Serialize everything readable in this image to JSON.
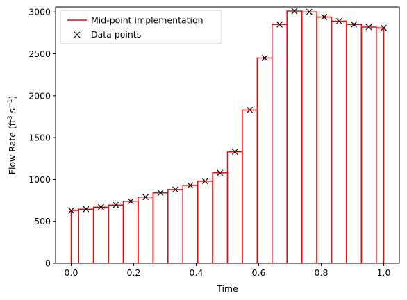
{
  "chart_data": {
    "type": "line",
    "xlabel": "Time",
    "ylabel_main": "Flow Rate (ft",
    "ylabel_exp1": "3",
    "ylabel_mid": " s",
    "ylabel_exp2": "−1",
    "ylabel_close": ")",
    "xlim": [
      -0.05,
      1.05
    ],
    "ylim": [
      0,
      3060
    ],
    "x_ticks": [
      0.0,
      0.2,
      0.4,
      0.6,
      0.8,
      1.0
    ],
    "x_tick_labels": [
      "0.0",
      "0.2",
      "0.4",
      "0.6",
      "0.8",
      "1.0"
    ],
    "y_ticks": [
      0,
      500,
      1000,
      1500,
      2000,
      2500,
      3000
    ],
    "y_tick_labels": [
      "0",
      "500",
      "1000",
      "1500",
      "2000",
      "2500",
      "3000"
    ],
    "legend_position": "top-left",
    "series": [
      {
        "name": "Mid-point implementation",
        "kind": "midpoint-step",
        "color": "#ff0000"
      },
      {
        "name": "Data points",
        "kind": "markers",
        "marker": "x",
        "color": "#000000"
      }
    ],
    "x": [
      0.0,
      0.0476,
      0.0952,
      0.1429,
      0.1905,
      0.2381,
      0.2857,
      0.3333,
      0.381,
      0.4286,
      0.4762,
      0.5238,
      0.5714,
      0.619,
      0.6667,
      0.7143,
      0.7619,
      0.8095,
      0.8571,
      0.9048,
      0.9524,
      1.0
    ],
    "values": [
      630,
      645,
      670,
      695,
      740,
      790,
      840,
      880,
      930,
      980,
      1080,
      1330,
      1830,
      2450,
      2850,
      3010,
      3000,
      2940,
      2890,
      2850,
      2820,
      2810
    ]
  }
}
